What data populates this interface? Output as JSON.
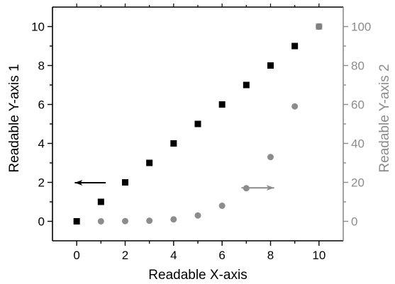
{
  "chart_data": {
    "type": "scatter",
    "xlabel": "Readable X-axis",
    "ylabel": "Readable Y-axis 1",
    "y2label": "Readable Y-axis 2",
    "xlim": [
      -1,
      11
    ],
    "ylim": [
      -1,
      11
    ],
    "y2lim": [
      -10,
      110
    ],
    "xticks": [
      0,
      2,
      4,
      6,
      8,
      10
    ],
    "yticks": [
      0,
      2,
      4,
      6,
      8,
      10
    ],
    "y2ticks": [
      0,
      20,
      40,
      60,
      80,
      100
    ],
    "grid": false,
    "colors": {
      "left": "#000000",
      "right": "#8c8c8c"
    },
    "series": [
      {
        "axis": "left",
        "marker": "square",
        "color": "#000000",
        "x": [
          0,
          1,
          2,
          3,
          4,
          5,
          6,
          7,
          8,
          9,
          10
        ],
        "y": [
          0,
          1,
          2,
          3,
          4,
          5,
          6,
          7,
          8,
          9,
          10
        ]
      },
      {
        "axis": "right",
        "marker": "circle",
        "color": "#8c8c8c",
        "x": [
          0,
          1,
          2,
          3,
          4,
          5,
          6,
          7,
          8,
          9,
          10
        ],
        "y": [
          0,
          0.01,
          0.1,
          0.3,
          1,
          3,
          8,
          17,
          33,
          59,
          100
        ]
      }
    ],
    "annotations": [
      {
        "type": "arrow",
        "direction": "left",
        "axis": "left",
        "color": "#000000"
      },
      {
        "type": "arrow",
        "direction": "right",
        "axis": "right",
        "color": "#8c8c8c"
      }
    ]
  }
}
